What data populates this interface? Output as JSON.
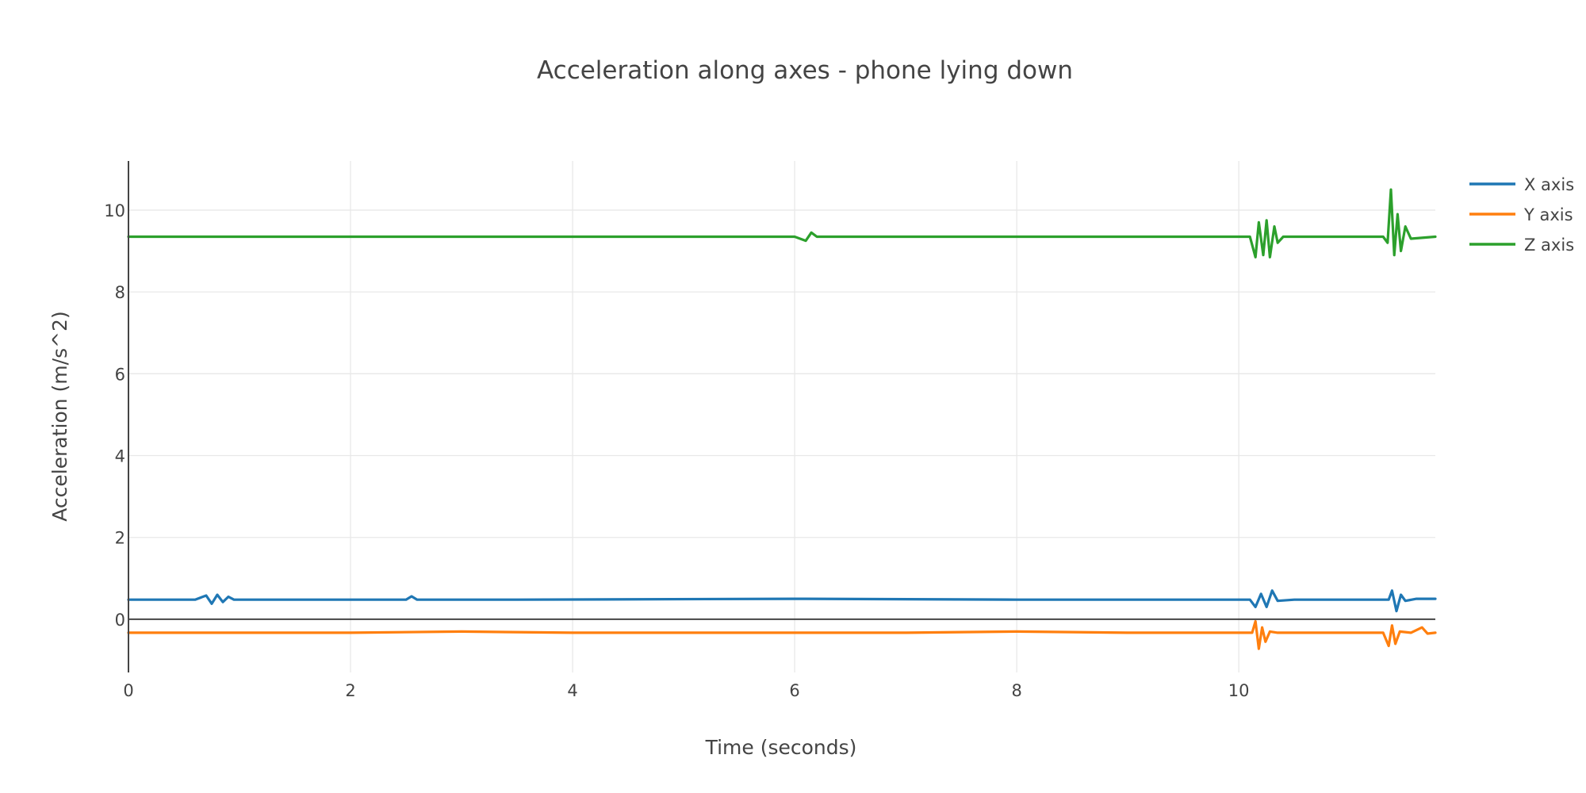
{
  "chart_data": {
    "type": "line",
    "title": "Acceleration along axes - phone lying down",
    "xlabel": "Time (seconds)",
    "ylabel": "Acceleration (m/s^2)",
    "xlim": [
      0,
      11.77
    ],
    "ylim": [
      -1.3,
      11.2
    ],
    "xticks": [
      0,
      2,
      4,
      6,
      8,
      10
    ],
    "xtick_labels": [
      "0",
      "2",
      "4",
      "6",
      "8",
      "10"
    ],
    "yticks": [
      0,
      2,
      4,
      6,
      8,
      10
    ],
    "ytick_labels": [
      "0",
      "2",
      "4",
      "6",
      "8",
      "10"
    ],
    "grid": true,
    "legend_position": "top-right",
    "series": [
      {
        "name": "X axis",
        "color": "#1f77b4",
        "x": [
          0,
          0.6,
          0.7,
          0.75,
          0.8,
          0.85,
          0.9,
          0.95,
          1.5,
          2.5,
          2.55,
          2.6,
          3.5,
          6.0,
          8.0,
          10.1,
          10.15,
          10.2,
          10.25,
          10.3,
          10.35,
          10.5,
          11.35,
          11.38,
          11.42,
          11.46,
          11.5,
          11.6,
          11.77
        ],
        "values": [
          0.48,
          0.48,
          0.58,
          0.38,
          0.6,
          0.42,
          0.55,
          0.48,
          0.48,
          0.48,
          0.56,
          0.48,
          0.48,
          0.5,
          0.48,
          0.48,
          0.3,
          0.62,
          0.3,
          0.7,
          0.45,
          0.48,
          0.48,
          0.7,
          0.2,
          0.6,
          0.45,
          0.5,
          0.5
        ]
      },
      {
        "name": "Y axis",
        "color": "#ff7f0e",
        "x": [
          0,
          1.0,
          2.0,
          3.0,
          4.0,
          5.0,
          6.0,
          7.0,
          8.0,
          9.0,
          10.0,
          10.12,
          10.15,
          10.18,
          10.21,
          10.24,
          10.28,
          10.35,
          10.6,
          11.0,
          11.3,
          11.35,
          11.38,
          11.41,
          11.45,
          11.55,
          11.65,
          11.7,
          11.77
        ],
        "values": [
          -0.33,
          -0.33,
          -0.33,
          -0.3,
          -0.33,
          -0.33,
          -0.33,
          -0.33,
          -0.3,
          -0.33,
          -0.33,
          -0.33,
          -0.05,
          -0.72,
          -0.2,
          -0.55,
          -0.3,
          -0.33,
          -0.33,
          -0.33,
          -0.33,
          -0.65,
          -0.15,
          -0.6,
          -0.3,
          -0.33,
          -0.2,
          -0.35,
          -0.33
        ]
      },
      {
        "name": "Z axis",
        "color": "#2ca02c",
        "x": [
          0,
          1.0,
          2.0,
          3.0,
          4.0,
          5.0,
          6.0,
          6.1,
          6.15,
          6.2,
          7.0,
          8.0,
          9.0,
          10.1,
          10.15,
          10.18,
          10.22,
          10.25,
          10.28,
          10.32,
          10.35,
          10.4,
          10.6,
          11.0,
          11.3,
          11.34,
          11.37,
          11.4,
          11.43,
          11.46,
          11.5,
          11.55,
          11.77
        ],
        "values": [
          9.35,
          9.35,
          9.35,
          9.35,
          9.35,
          9.35,
          9.35,
          9.25,
          9.45,
          9.35,
          9.35,
          9.35,
          9.35,
          9.35,
          8.85,
          9.7,
          8.9,
          9.75,
          8.85,
          9.6,
          9.2,
          9.35,
          9.35,
          9.35,
          9.35,
          9.2,
          10.5,
          8.9,
          9.9,
          9.0,
          9.6,
          9.3,
          9.35
        ]
      }
    ]
  }
}
